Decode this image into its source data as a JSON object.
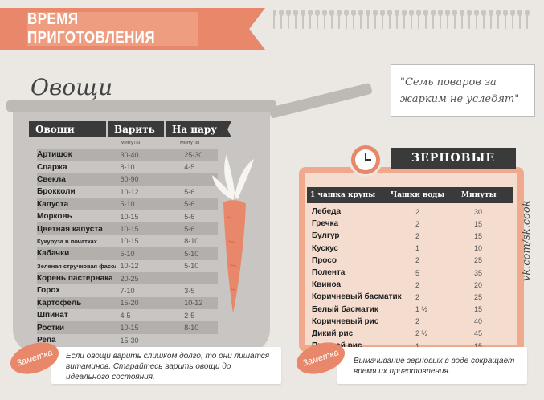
{
  "banner": {
    "title": "ВРЕМЯ ПРИГОТОВЛЕНИЯ"
  },
  "vegetables": {
    "title": "Овощи",
    "headers": {
      "name": "Овощи",
      "boil": "Варить",
      "steam": "На пару"
    },
    "units": {
      "boil": "минуты",
      "steam": "минуты"
    },
    "rows": [
      {
        "name": "Артишок",
        "boil": "30-40",
        "steam": "25-30"
      },
      {
        "name": "Спаржа",
        "boil": "8-10",
        "steam": "4-5"
      },
      {
        "name": "Свекла",
        "boil": "60-90",
        "steam": ""
      },
      {
        "name": "Брокколи",
        "boil": "10-12",
        "steam": "5-6"
      },
      {
        "name": "Капуста",
        "boil": "5-10",
        "steam": "5-6"
      },
      {
        "name": "Морковь",
        "boil": "10-15",
        "steam": "5-6"
      },
      {
        "name": "Цветная капуста",
        "boil": "10-15",
        "steam": "5-6"
      },
      {
        "name": "Кукуруза в початках",
        "boil": "10-15",
        "steam": "8-10",
        "small": true
      },
      {
        "name": "Кабачки",
        "boil": "5-10",
        "steam": "5-10"
      },
      {
        "name": "Зеленая стручковая фасоль",
        "boil": "10-12",
        "steam": "5-10",
        "small": true
      },
      {
        "name": "Корень пастернака",
        "boil": "20-25",
        "steam": ""
      },
      {
        "name": "Горох",
        "boil": "7-10",
        "steam": "3-5"
      },
      {
        "name": "Картофель",
        "boil": "15-20",
        "steam": "10-12"
      },
      {
        "name": "Шпинат",
        "boil": "4-5",
        "steam": "2-5"
      },
      {
        "name": "Ростки",
        "boil": "10-15",
        "steam": "8-10"
      },
      {
        "name": "Репа",
        "boil": "15-30",
        "steam": ""
      }
    ],
    "note_badge": "Заметка",
    "note": "Если овощи варить слишком долго, то они лишатся витаминов. Старайтесь варить овощи до идеального состояния."
  },
  "quote": {
    "text": "\"Семь поваров за жарким не уследят\""
  },
  "grains": {
    "title": "ЗЕРНОВЫЕ",
    "headers": {
      "name": "1 чашка крупы",
      "cups": "Чашки воды",
      "minutes": "Минуты"
    },
    "rows": [
      {
        "name": "Лебеда",
        "cups": "2",
        "minutes": "30"
      },
      {
        "name": "Гречка",
        "cups": "2",
        "minutes": "15"
      },
      {
        "name": "Булгур",
        "cups": "2",
        "minutes": "15"
      },
      {
        "name": "Кускус",
        "cups": "1",
        "minutes": "10"
      },
      {
        "name": "Просо",
        "cups": "2",
        "minutes": "25"
      },
      {
        "name": "Полента",
        "cups": "5",
        "minutes": "35"
      },
      {
        "name": "Квиноа",
        "cups": "2",
        "minutes": "20"
      },
      {
        "name": "Коричневый басматик",
        "cups": "2",
        "minutes": "25"
      },
      {
        "name": "Белый басматик",
        "cups": "1 ½",
        "minutes": "15"
      },
      {
        "name": "Коричневый рис",
        "cups": "2",
        "minutes": "40"
      },
      {
        "name": "Дикий рис",
        "cups": "2 ½",
        "minutes": "45"
      },
      {
        "name": "Простой рис",
        "cups": "1",
        "minutes": "15"
      }
    ],
    "note_badge": "Заметка",
    "note": "Вымачивание зерновых в воде сокращает время их приготовления."
  },
  "watermark": {
    "text": "vk.com/sk.cook"
  },
  "colors": {
    "accent": "#e8876a",
    "dark": "#3a3a3a",
    "pot": "#c8c5c2"
  }
}
